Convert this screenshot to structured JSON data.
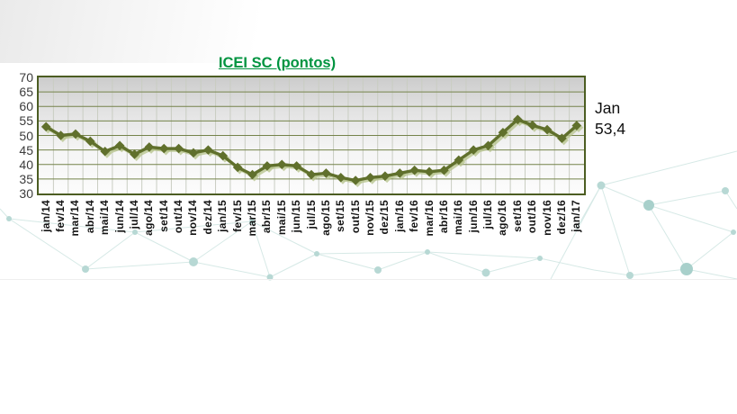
{
  "chart_data": {
    "type": "line",
    "title": "ICEI SC (pontos)",
    "xlabel": "",
    "ylabel": "",
    "categories": [
      "jan/14",
      "fev/14",
      "mar/14",
      "abr/14",
      "mai/14",
      "jun/14",
      "jul/14",
      "ago/14",
      "set/14",
      "out/14",
      "nov/14",
      "dez/14",
      "jan/15",
      "fev/15",
      "mar/15",
      "abr/15",
      "mai/15",
      "jun/15",
      "jul/15",
      "ago/15",
      "set/15",
      "out/15",
      "nov/15",
      "dez/15",
      "jan/16",
      "fev/16",
      "mar/16",
      "abr/16",
      "mai/16",
      "jun/16",
      "jul/16",
      "ago/16",
      "set/16",
      "out/16",
      "nov/16",
      "dez/16",
      "jan/17"
    ],
    "series": [
      {
        "name": "ICEI SC",
        "values": [
          53,
          50,
          50.5,
          48,
          44.5,
          46.5,
          43.5,
          46,
          45.5,
          45.5,
          44,
          45,
          43,
          39,
          36.5,
          39.5,
          40,
          39.5,
          36.5,
          37,
          35.5,
          34.5,
          35.5,
          36,
          37,
          38,
          37.5,
          38,
          41.5,
          45,
          46.5,
          51,
          55.5,
          53.5,
          52,
          49,
          53.4
        ]
      }
    ],
    "ylim": [
      30,
      70
    ],
    "ytick_step": 5,
    "yticks": [
      70,
      65,
      60,
      55,
      50,
      45,
      40,
      35,
      30
    ],
    "grid": "horizontal major dark-olive, vertical per-month light gray",
    "legend": "none",
    "marker": "diamond",
    "annotation": {
      "line1": "Jan",
      "line2": "53,4"
    },
    "colors": {
      "title": "#009440",
      "line": "#60702c",
      "line_shadow": "#b5c38b",
      "plot_border": "#4c5d22",
      "hgrid": "#75834a",
      "vgrid": "#c9cdc2",
      "annotation_text": "#111111"
    }
  },
  "decoration": {
    "style": "pale network of nodes and lines, bottom and right of slide",
    "line_color": "#d6e9e6",
    "node_color": "#b7d8d4",
    "big_node_color": "#a8d0cb"
  }
}
